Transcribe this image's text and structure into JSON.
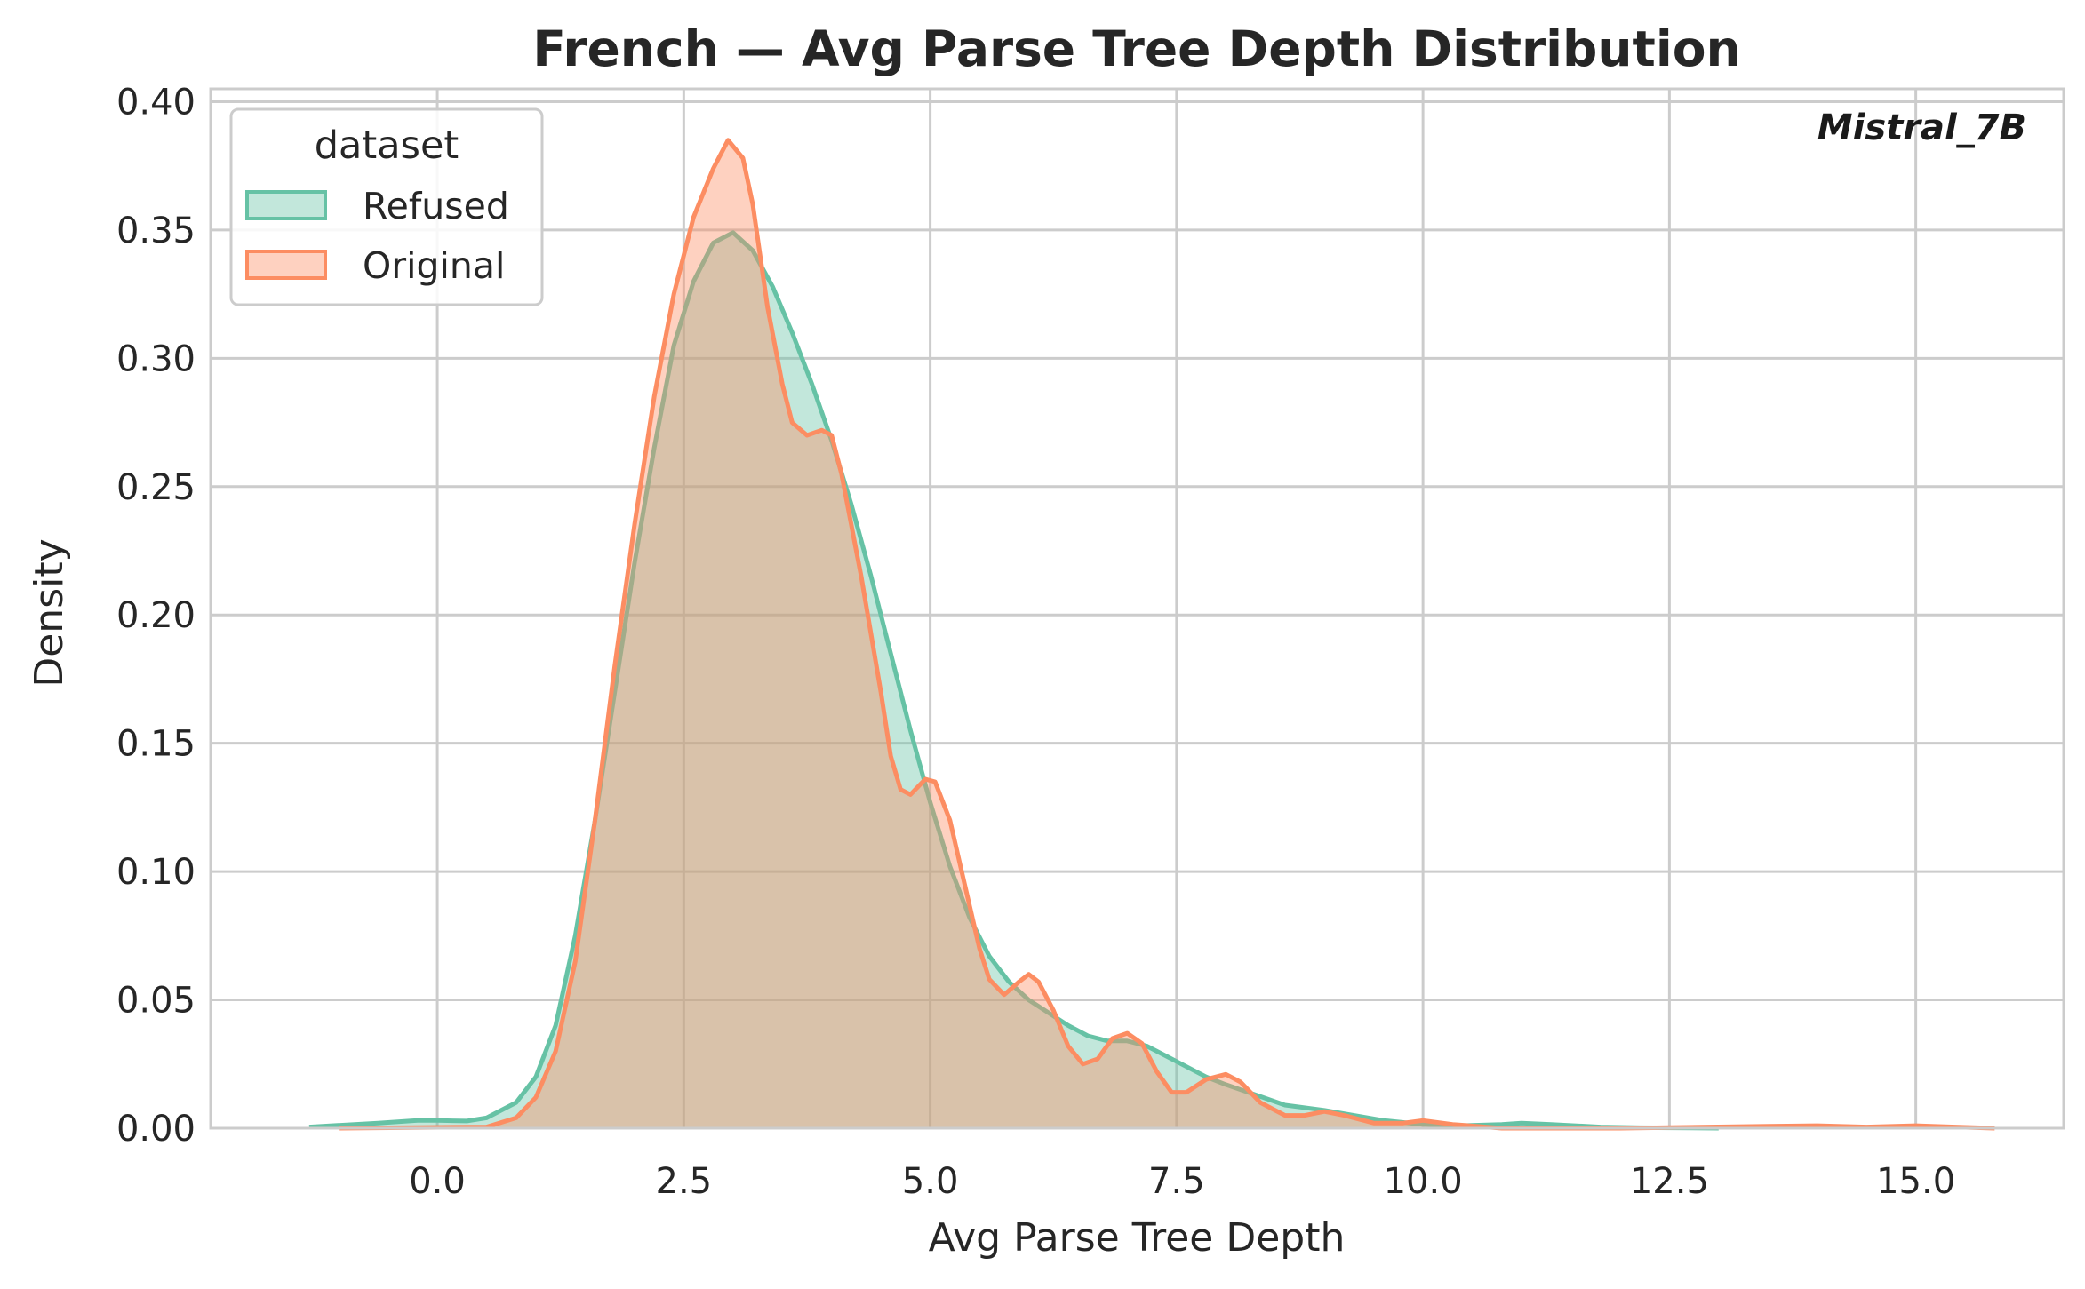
{
  "chart_data": {
    "type": "area",
    "title": "French — Avg Parse Tree Depth Distribution",
    "xlabel": "Avg Parse Tree Depth",
    "ylabel": "Density",
    "xlim": [
      -2.3,
      16.5
    ],
    "ylim": [
      0,
      0.405
    ],
    "x_ticks": [
      0.0,
      2.5,
      5.0,
      7.5,
      10.0,
      12.5,
      15.0
    ],
    "x_tick_labels": [
      "0.0",
      "2.5",
      "5.0",
      "7.5",
      "10.0",
      "12.5",
      "15.0"
    ],
    "y_ticks": [
      0.0,
      0.05,
      0.1,
      0.15,
      0.2,
      0.25,
      0.3,
      0.35,
      0.4
    ],
    "y_tick_labels": [
      "0.00",
      "0.05",
      "0.10",
      "0.15",
      "0.20",
      "0.25",
      "0.30",
      "0.35",
      "0.40"
    ],
    "grid": true,
    "legend": {
      "title": "dataset",
      "placement": "top-left"
    },
    "annotation": "Mistral_7B",
    "series": [
      {
        "name": "Refused",
        "color": "#66c2a5",
        "points": [
          [
            -1.3,
            0.0005
          ],
          [
            -0.6,
            0.002
          ],
          [
            -0.2,
            0.003
          ],
          [
            0.0,
            0.003
          ],
          [
            0.3,
            0.0028
          ],
          [
            0.5,
            0.004
          ],
          [
            0.8,
            0.01
          ],
          [
            1.0,
            0.02
          ],
          [
            1.2,
            0.04
          ],
          [
            1.4,
            0.075
          ],
          [
            1.6,
            0.12
          ],
          [
            1.8,
            0.17
          ],
          [
            2.0,
            0.22
          ],
          [
            2.2,
            0.265
          ],
          [
            2.4,
            0.305
          ],
          [
            2.6,
            0.33
          ],
          [
            2.8,
            0.345
          ],
          [
            3.0,
            0.349
          ],
          [
            3.2,
            0.342
          ],
          [
            3.4,
            0.328
          ],
          [
            3.6,
            0.31
          ],
          [
            3.8,
            0.29
          ],
          [
            4.0,
            0.268
          ],
          [
            4.2,
            0.243
          ],
          [
            4.4,
            0.215
          ],
          [
            4.6,
            0.185
          ],
          [
            4.8,
            0.155
          ],
          [
            5.0,
            0.127
          ],
          [
            5.2,
            0.102
          ],
          [
            5.4,
            0.082
          ],
          [
            5.6,
            0.067
          ],
          [
            5.8,
            0.057
          ],
          [
            6.0,
            0.05
          ],
          [
            6.2,
            0.045
          ],
          [
            6.4,
            0.04
          ],
          [
            6.6,
            0.036
          ],
          [
            6.8,
            0.034
          ],
          [
            7.0,
            0.034
          ],
          [
            7.2,
            0.032
          ],
          [
            7.4,
            0.028
          ],
          [
            7.6,
            0.024
          ],
          [
            7.8,
            0.02
          ],
          [
            8.0,
            0.017
          ],
          [
            8.3,
            0.013
          ],
          [
            8.6,
            0.009
          ],
          [
            9.0,
            0.007
          ],
          [
            9.3,
            0.005
          ],
          [
            9.6,
            0.003
          ],
          [
            10.0,
            0.0015
          ],
          [
            10.4,
            0.001
          ],
          [
            10.8,
            0.0015
          ],
          [
            11.0,
            0.002
          ],
          [
            11.3,
            0.0015
          ],
          [
            11.8,
            0.0005
          ],
          [
            12.2,
            0.0002
          ],
          [
            13.0,
            0.0
          ]
        ]
      },
      {
        "name": "Original",
        "color": "#fc8d62",
        "points": [
          [
            -1.0,
            0.0
          ],
          [
            0.5,
            0.0005
          ],
          [
            0.8,
            0.004
          ],
          [
            1.0,
            0.012
          ],
          [
            1.2,
            0.03
          ],
          [
            1.4,
            0.065
          ],
          [
            1.6,
            0.12
          ],
          [
            1.8,
            0.18
          ],
          [
            2.0,
            0.235
          ],
          [
            2.2,
            0.285
          ],
          [
            2.4,
            0.325
          ],
          [
            2.6,
            0.355
          ],
          [
            2.8,
            0.374
          ],
          [
            2.95,
            0.385
          ],
          [
            3.1,
            0.378
          ],
          [
            3.2,
            0.36
          ],
          [
            3.35,
            0.32
          ],
          [
            3.5,
            0.29
          ],
          [
            3.6,
            0.275
          ],
          [
            3.75,
            0.27
          ],
          [
            3.9,
            0.272
          ],
          [
            4.0,
            0.27
          ],
          [
            4.1,
            0.255
          ],
          [
            4.3,
            0.215
          ],
          [
            4.5,
            0.17
          ],
          [
            4.6,
            0.145
          ],
          [
            4.7,
            0.132
          ],
          [
            4.8,
            0.13
          ],
          [
            4.95,
            0.136
          ],
          [
            5.05,
            0.135
          ],
          [
            5.2,
            0.12
          ],
          [
            5.35,
            0.095
          ],
          [
            5.5,
            0.07
          ],
          [
            5.6,
            0.058
          ],
          [
            5.75,
            0.052
          ],
          [
            5.9,
            0.057
          ],
          [
            6.0,
            0.06
          ],
          [
            6.1,
            0.057
          ],
          [
            6.25,
            0.046
          ],
          [
            6.4,
            0.032
          ],
          [
            6.55,
            0.025
          ],
          [
            6.7,
            0.027
          ],
          [
            6.85,
            0.035
          ],
          [
            7.0,
            0.037
          ],
          [
            7.15,
            0.033
          ],
          [
            7.3,
            0.022
          ],
          [
            7.45,
            0.014
          ],
          [
            7.6,
            0.014
          ],
          [
            7.8,
            0.019
          ],
          [
            8.0,
            0.021
          ],
          [
            8.15,
            0.018
          ],
          [
            8.35,
            0.01
          ],
          [
            8.6,
            0.005
          ],
          [
            8.8,
            0.005
          ],
          [
            9.0,
            0.0065
          ],
          [
            9.2,
            0.005
          ],
          [
            9.5,
            0.002
          ],
          [
            9.8,
            0.002
          ],
          [
            10.0,
            0.003
          ],
          [
            10.3,
            0.0015
          ],
          [
            10.8,
            0.0
          ],
          [
            12.0,
            0.0
          ],
          [
            13.5,
            0.0008
          ],
          [
            14.0,
            0.001
          ],
          [
            14.5,
            0.0005
          ],
          [
            15.0,
            0.001
          ],
          [
            15.4,
            0.0005
          ],
          [
            15.8,
            0.0
          ]
        ]
      }
    ]
  }
}
